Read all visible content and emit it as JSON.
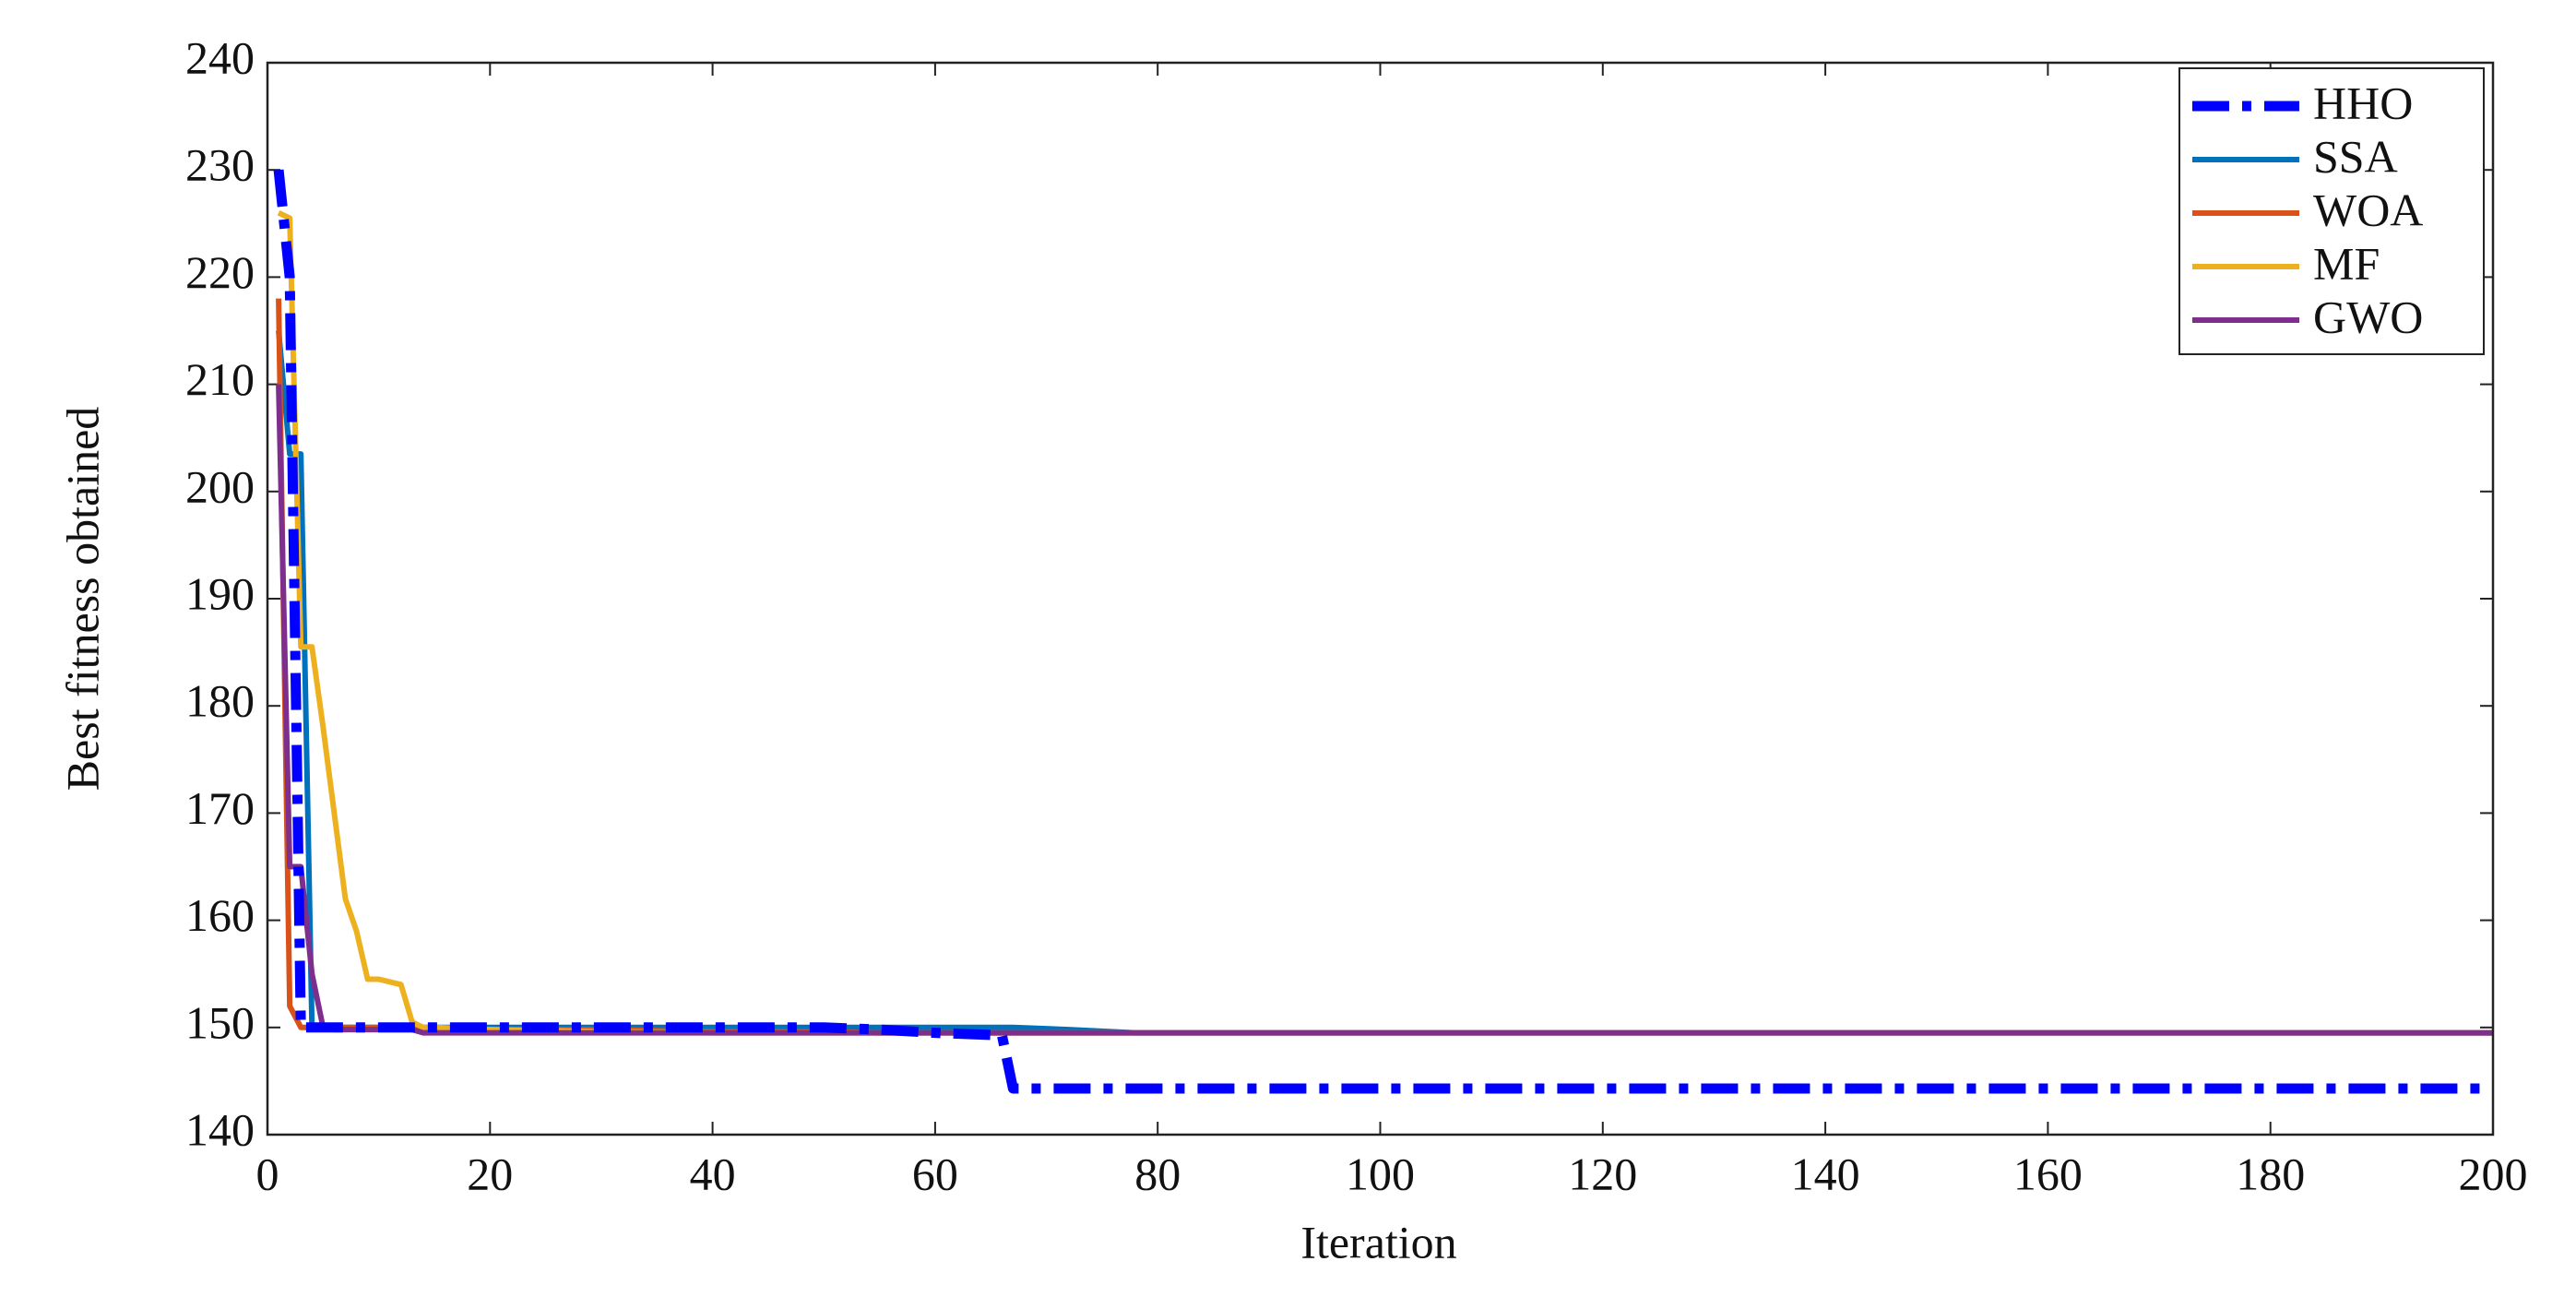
{
  "chart_data": {
    "type": "line",
    "xlabel": "Iteration",
    "ylabel": "Best fitness obtained",
    "x": [
      1,
      2,
      3,
      4,
      5,
      6,
      7,
      8,
      9,
      10,
      12,
      13,
      14,
      15,
      20,
      30,
      40,
      50,
      55,
      60,
      65,
      66,
      67,
      72,
      78,
      100,
      150,
      200
    ],
    "series": [
      {
        "name": "HHO",
        "color": "#0000ff",
        "linestyle": "-.",
        "values": [
          230,
          220,
          150,
          150,
          150,
          150,
          150,
          150,
          150,
          150,
          150,
          150,
          150,
          150,
          150,
          150,
          150,
          150,
          149.8,
          149.5,
          149.3,
          149.3,
          144.3,
          144.3,
          144.3,
          144.3,
          144.3,
          144.3
        ]
      },
      {
        "name": "SSA",
        "color": "#0072bd",
        "values": [
          215,
          203.5,
          203.5,
          150,
          150,
          150,
          150,
          150,
          150,
          150,
          150,
          150,
          150,
          150,
          150,
          150,
          150,
          150,
          150,
          150,
          150,
          150,
          150,
          149.8,
          149.5,
          149.5,
          149.5,
          149.5
        ]
      },
      {
        "name": "WOA",
        "color": "#d95319",
        "values": [
          218,
          152,
          150,
          150,
          150,
          150,
          150,
          150,
          150,
          150,
          150,
          150,
          149.8,
          149.8,
          149.8,
          149.8,
          149.6,
          149.6,
          149.5,
          149.5,
          149.5,
          149.5,
          149.5,
          149.5,
          149.5,
          149.5,
          149.5,
          149.5
        ]
      },
      {
        "name": "MF",
        "color": "#edb120",
        "values": [
          226,
          225.5,
          185.5,
          185.5,
          178,
          170,
          162,
          159,
          154.5,
          154.5,
          154,
          150.5,
          150,
          150,
          149.8,
          149.6,
          149.5,
          149.5,
          149.5,
          149.5,
          149.5,
          149.5,
          149.5,
          149.5,
          149.5,
          149.5,
          149.5,
          149.5
        ]
      },
      {
        "name": "GWO",
        "color": "#7e2f8e",
        "values": [
          210,
          165,
          165,
          155,
          150,
          149.8,
          149.8,
          149.8,
          149.8,
          149.8,
          149.8,
          149.8,
          149.5,
          149.5,
          149.5,
          149.5,
          149.5,
          149.5,
          149.5,
          149.5,
          149.5,
          149.5,
          149.5,
          149.5,
          149.5,
          149.5,
          149.5,
          149.5
        ]
      }
    ],
    "xlim": [
      0,
      200
    ],
    "xticks": [
      0,
      20,
      40,
      60,
      80,
      100,
      120,
      140,
      160,
      180,
      200
    ],
    "ylim": [
      140,
      240
    ],
    "yticks": [
      140,
      150,
      160,
      170,
      180,
      190,
      200,
      210,
      220,
      230,
      240
    ],
    "legend": "top-right"
  }
}
